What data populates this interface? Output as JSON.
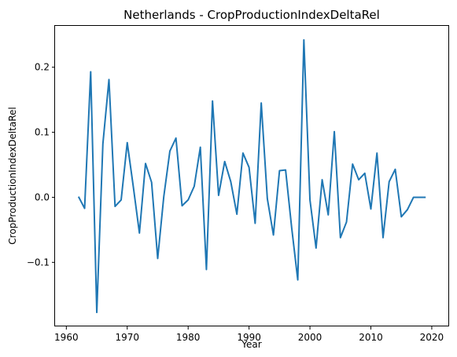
{
  "chart_data": {
    "type": "line",
    "title": "Netherlands - CropProductionIndexDeltaRel",
    "xlabel": "Year",
    "ylabel": "CropProductionIndexDeltaRel",
    "xlim": [
      1958.15,
      2022.85
    ],
    "ylim": [
      -0.1985,
      0.2635
    ],
    "xticks": [
      1960,
      1970,
      1980,
      1990,
      2000,
      2010,
      2020
    ],
    "xtick_labels": [
      "1960",
      "1970",
      "1980",
      "1990",
      "2000",
      "2010",
      "2020"
    ],
    "yticks": [
      -0.1,
      0.0,
      0.1,
      0.2
    ],
    "ytick_labels": [
      "−0.1",
      "0.0",
      "0.1",
      "0.2"
    ],
    "grid": false,
    "color": "#1f77b4",
    "series": [
      {
        "x": [
          1962,
          1963,
          1964,
          1965,
          1966,
          1967,
          1968,
          1969,
          1970,
          1971,
          1972,
          1973,
          1974,
          1975,
          1976,
          1977,
          1978,
          1979,
          1980,
          1981,
          1982,
          1983,
          1984,
          1985,
          1986,
          1987,
          1988,
          1989,
          1990,
          1991,
          1992,
          1993,
          1994,
          1995,
          1996,
          1997,
          1998,
          1999,
          2000,
          2001,
          2002,
          2003,
          2004,
          2005,
          2006,
          2007,
          2008,
          2009,
          2010,
          2011,
          2012,
          2013,
          2014,
          2015,
          2016,
          2017,
          2018,
          2019
        ],
        "values": [
          0.001,
          -0.017,
          0.193,
          -0.177,
          0.082,
          0.181,
          -0.014,
          -0.004,
          0.084,
          0.016,
          -0.055,
          0.052,
          0.023,
          -0.094,
          0.001,
          0.071,
          0.091,
          -0.013,
          -0.004,
          0.017,
          0.077,
          -0.111,
          0.148,
          0.003,
          0.055,
          0.024,
          -0.026,
          0.068,
          0.046,
          -0.04,
          0.145,
          -0.002,
          -0.058,
          0.041,
          0.042,
          -0.047,
          -0.127,
          0.242,
          -0.004,
          -0.078,
          0.027,
          -0.027,
          0.101,
          -0.062,
          -0.038,
          0.051,
          0.027,
          0.037,
          -0.018,
          0.068,
          -0.062,
          0.024,
          0.043,
          -0.03,
          -0.019,
          0.0,
          0.0,
          0.0
        ]
      }
    ]
  }
}
